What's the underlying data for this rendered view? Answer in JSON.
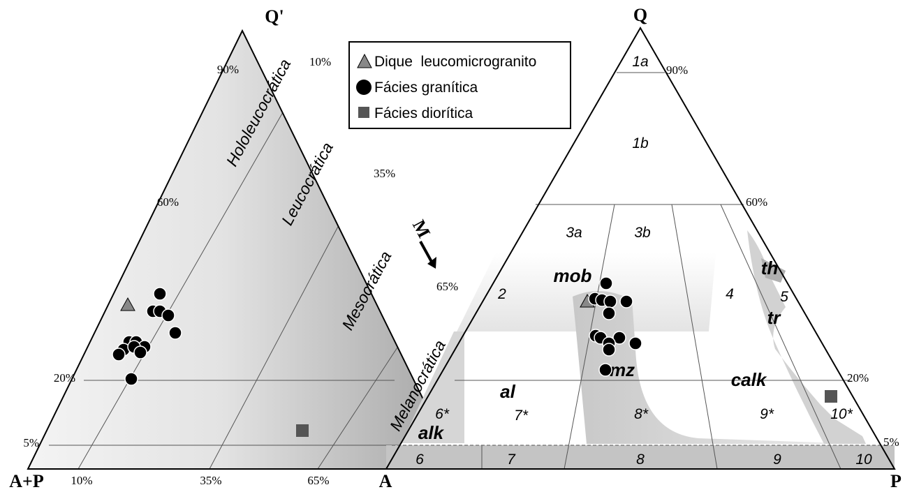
{
  "left_diagram": {
    "apex_top": "Q'",
    "apex_left": "A+P",
    "apex_right_arrow": "M",
    "left_ticks": [
      "90%",
      "60%",
      "20%",
      "5%"
    ],
    "right_ticks": [
      "10%",
      "35%",
      "65%"
    ],
    "bottom_ticks": [
      "10%",
      "35%",
      "65%"
    ],
    "zones": [
      "Hololeucocrática",
      "Leucocrática",
      "Mesocrática",
      "Melanocrática"
    ]
  },
  "right_diagram": {
    "apex_top": "Q",
    "apex_left": "A",
    "apex_right": "P",
    "right_ticks": [
      "90%",
      "60%",
      "20%",
      "5%"
    ],
    "fields": [
      "1a",
      "1b",
      "2",
      "3a",
      "3b",
      "4",
      "5",
      "6*",
      "7*",
      "8*",
      "9*",
      "10*",
      "6",
      "7",
      "8",
      "9",
      "10"
    ],
    "series_labels": [
      "mob",
      "th",
      "tr",
      "al",
      "alk",
      "mz",
      "calk"
    ]
  },
  "legend": {
    "items": [
      {
        "label": "Dique  leucomicrogranito",
        "symbol": "triangle",
        "color": "#888888"
      },
      {
        "label": "Fácies granítica",
        "symbol": "circle",
        "color": "#000000"
      },
      {
        "label": "Fácies diorítica",
        "symbol": "square",
        "color": "#555555"
      }
    ]
  },
  "colors": {
    "outline": "#000000",
    "shade_light": "#f2f2f2",
    "shade_dark": "#a6a6a6",
    "guide": "#555555"
  }
}
